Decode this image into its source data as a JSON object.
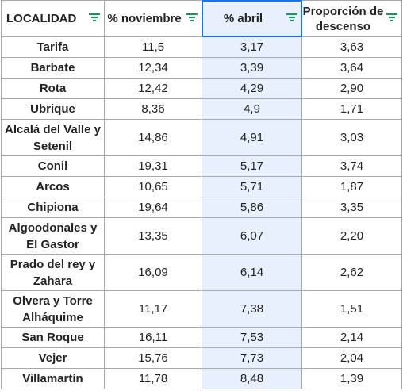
{
  "headers": [
    {
      "label": "LOCALIDAD"
    },
    {
      "label": "% noviembre"
    },
    {
      "label": "% abril"
    },
    {
      "label": "Proporción de descenso"
    }
  ],
  "colors": {
    "filter_icon": "#0f9d58",
    "selection": "#1a73e8",
    "selection_fill": "#e8f0fe",
    "grid": "#a9a9a9"
  },
  "rows": [
    {
      "localidad": "Tarifa",
      "noviembre": "11,5",
      "abril": "3,17",
      "descenso": "3,63"
    },
    {
      "localidad": "Barbate",
      "noviembre": "12,34",
      "abril": "3,39",
      "descenso": "3,64"
    },
    {
      "localidad": "Rota",
      "noviembre": "12,42",
      "abril": "4,29",
      "descenso": "2,90"
    },
    {
      "localidad": "Ubrique",
      "noviembre": "8,36",
      "abril": "4,9",
      "descenso": "1,71"
    },
    {
      "localidad": "Alcalá del Valle y Setenil",
      "noviembre": "14,86",
      "abril": "4,91",
      "descenso": "3,03"
    },
    {
      "localidad": "Conil",
      "noviembre": "19,31",
      "abril": "5,17",
      "descenso": "3,74"
    },
    {
      "localidad": "Arcos",
      "noviembre": "10,65",
      "abril": "5,71",
      "descenso": "1,87"
    },
    {
      "localidad": "Chipiona",
      "noviembre": "19,64",
      "abril": "5,86",
      "descenso": "3,35"
    },
    {
      "localidad": "Algoodonales y El Gastor",
      "noviembre": "13,35",
      "abril": "6,07",
      "descenso": "2,20"
    },
    {
      "localidad": "Prado del rey y Zahara",
      "noviembre": "16,09",
      "abril": "6,14",
      "descenso": "2,62"
    },
    {
      "localidad": "Olvera y Torre Alháquime",
      "noviembre": "11,17",
      "abril": "7,38",
      "descenso": "1,51"
    },
    {
      "localidad": "San Roque",
      "noviembre": "16,11",
      "abril": "7,53",
      "descenso": "2,14"
    },
    {
      "localidad": "Vejer",
      "noviembre": "15,76",
      "abril": "7,73",
      "descenso": "2,04"
    },
    {
      "localidad": "Villamartín",
      "noviembre": "11,78",
      "abril": "8,48",
      "descenso": "1,39"
    }
  ]
}
